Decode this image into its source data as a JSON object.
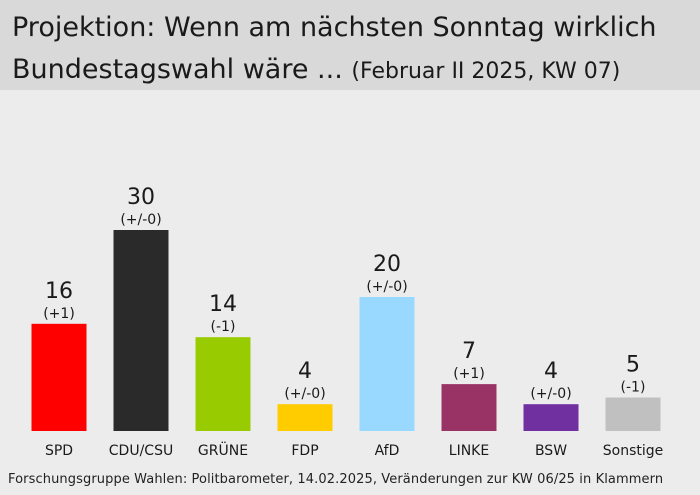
{
  "title_main": "Projektion: Wenn am nächsten Sonntag wirklich",
  "title_second": "Bundestagswahl wäre ...",
  "subtitle": "(Februar II 2025, KW 07)",
  "source": "Forschungsgruppe Wahlen: Politbarometer, 14.02.2025, Veränderungen zur KW 06/25 in Klammern",
  "chart_data": {
    "type": "bar",
    "title": "Projektion: Wenn am nächsten Sonntag wirklich Bundestagswahl wäre ... (Februar II 2025, KW 07)",
    "xlabel": "",
    "ylabel": "",
    "ylim": [
      0,
      30
    ],
    "categories": [
      "SPD",
      "CDU/CSU",
      "GRÜNE",
      "FDP",
      "AfD",
      "LINKE",
      "BSW",
      "Sonstige"
    ],
    "values": [
      16,
      30,
      14,
      4,
      20,
      7,
      4,
      5
    ],
    "changes": [
      "(+1)",
      "(+/-0)",
      "(-1)",
      "(+/-0)",
      "(+/-0)",
      "(+1)",
      "(+/-0)",
      "(-1)"
    ],
    "colors": [
      "#ff0000",
      "#2a2a2a",
      "#99cc00",
      "#ffcc00",
      "#99d9ff",
      "#993366",
      "#7030a0",
      "#c0c0c0"
    ]
  }
}
